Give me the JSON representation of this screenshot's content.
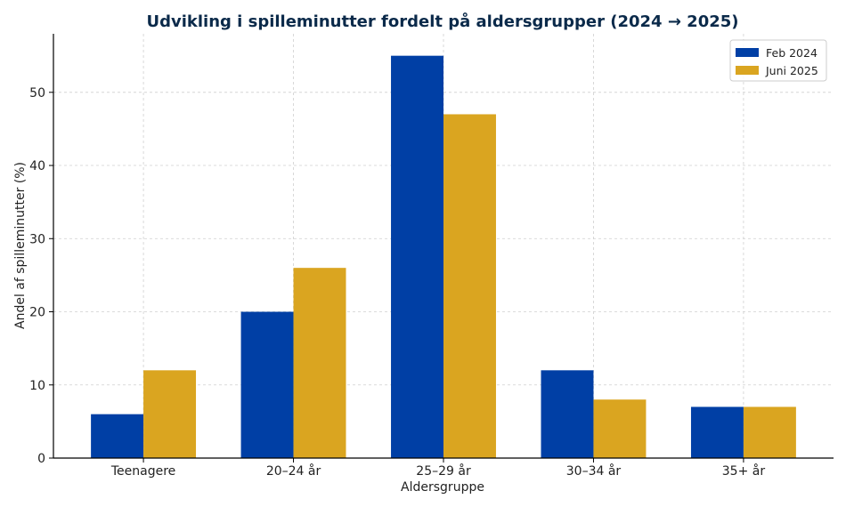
{
  "chart_data": {
    "type": "bar",
    "title": "Udvikling i spilleminutter fordelt på aldersgrupper (2024 → 2025)",
    "xlabel": "Aldersgruppe",
    "ylabel": "Andel af spilleminutter (%)",
    "categories": [
      "Teenagere",
      "20–24 år",
      "25–29 år",
      "30–34 år",
      "35+ år"
    ],
    "series": [
      {
        "name": "Feb 2024",
        "values": [
          6,
          20,
          55,
          12,
          7
        ],
        "color": "#003fa5"
      },
      {
        "name": "Juni 2025",
        "values": [
          12,
          26,
          47,
          8,
          7
        ],
        "color": "#daa520"
      }
    ],
    "ylim": [
      0,
      58
    ],
    "yticks": [
      "0",
      "10",
      "20",
      "30",
      "40",
      "50"
    ],
    "grid": true,
    "legend_position": "top-right"
  }
}
